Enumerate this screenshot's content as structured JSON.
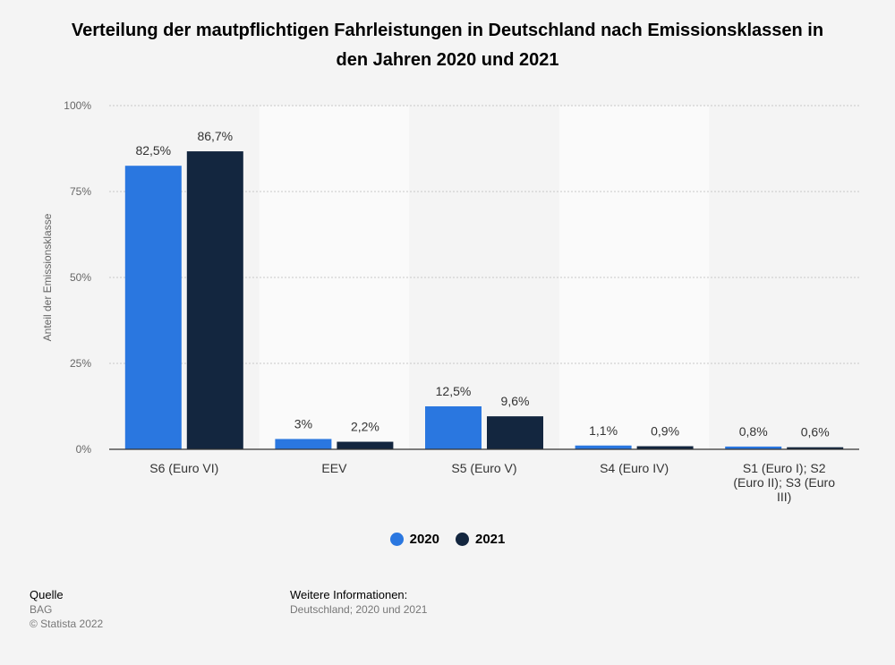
{
  "title": "Verteilung der mautpflichtigen Fahrleistungen in Deutschland nach Emissionsklassen in den Jahren 2020 und 2021",
  "chart_data": {
    "type": "bar",
    "categories": [
      "S6 (Euro VI)",
      "EEV",
      "S5 (Euro V)",
      "S4 (Euro IV)",
      "S1 (Euro I); S2 (Euro II); S3 (Euro III)"
    ],
    "series": [
      {
        "name": "2020",
        "values": [
          82.5,
          3,
          12.5,
          1.1,
          0.8
        ],
        "labels": [
          "82,5%",
          "3%",
          "12,5%",
          "1,1%",
          "0,8%"
        ],
        "color": "#2a77e0"
      },
      {
        "name": "2021",
        "values": [
          86.7,
          2.2,
          9.6,
          0.9,
          0.6
        ],
        "labels": [
          "86,7%",
          "2,2%",
          "9,6%",
          "0,9%",
          "0,6%"
        ],
        "color": "#13263f"
      }
    ],
    "ylabel": "Anteil der Emissionsklasse",
    "ylim": [
      0,
      100
    ],
    "yticks": [
      0,
      25,
      50,
      75,
      100
    ],
    "ytick_labels": [
      "0%",
      "25%",
      "50%",
      "75%",
      "100%"
    ],
    "grid": true,
    "legend_position": "bottom-center"
  },
  "footer": {
    "source_heading": "Quelle",
    "source": "BAG",
    "copyright": "© Statista 2022",
    "info_heading": "Weitere Informationen:",
    "info": "Deutschland; 2020 und 2021"
  }
}
